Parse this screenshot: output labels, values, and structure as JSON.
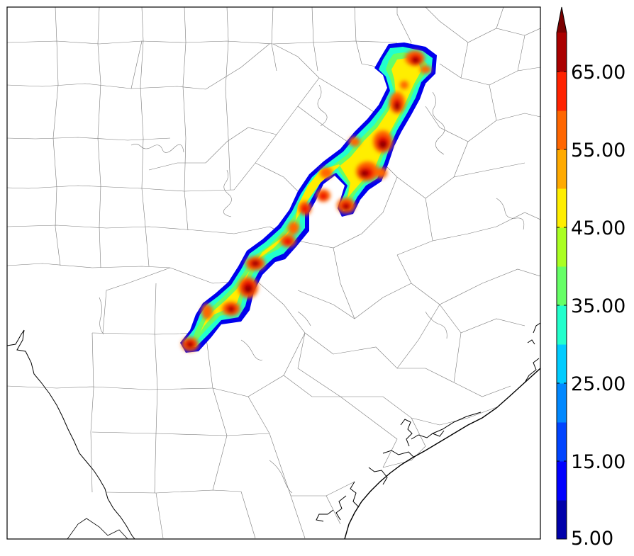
{
  "map": {
    "title": "",
    "features": [
      "county-boundaries",
      "state-border",
      "coastline",
      "bays"
    ]
  },
  "colorbar": {
    "extend": "max",
    "levels": [
      5,
      10,
      15,
      20,
      25,
      30,
      35,
      40,
      45,
      50,
      55,
      60,
      65,
      70
    ],
    "colors": [
      "#0000aa",
      "#0000ff",
      "#0044ff",
      "#0088ff",
      "#00ccff",
      "#22ffcc",
      "#66ff66",
      "#aaff22",
      "#ffee00",
      "#ffaa00",
      "#ff6600",
      "#ff2200",
      "#aa0000"
    ],
    "extend_color": "#7a0000",
    "tick_labels": [
      "5.00",
      "15.00",
      "25.00",
      "35.00",
      "45.00",
      "55.00",
      "65.00"
    ]
  }
}
